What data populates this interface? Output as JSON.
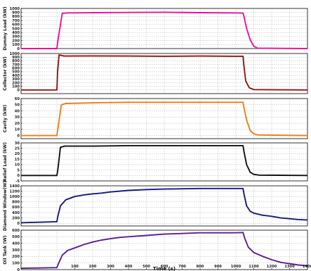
{
  "chart_data": [
    {
      "type": "line",
      "ylabel": "Dummy Load (kW)",
      "xlim": [
        -200,
        1400
      ],
      "ylim": [
        0,
        1000
      ],
      "yticks": [
        0,
        100,
        200,
        300,
        400,
        500,
        600,
        700,
        800,
        900,
        1000
      ],
      "ytick_labels": [
        "0",
        "100",
        "200",
        "300",
        "400",
        "500",
        "600",
        "700",
        "800",
        "900",
        "1000"
      ],
      "grid": true,
      "color": "#e8119a",
      "x": [
        -200,
        0,
        5,
        30,
        60,
        200,
        400,
        600,
        800,
        1000,
        1040,
        1045,
        1060,
        1080,
        1100,
        1120,
        1400
      ],
      "y": [
        0,
        0,
        180,
        880,
        890,
        895,
        900,
        905,
        895,
        890,
        885,
        800,
        500,
        220,
        60,
        10,
        0
      ]
    },
    {
      "type": "line",
      "ylabel": "Collector (kW)",
      "xlim": [
        -200,
        1400
      ],
      "ylim": [
        -100,
        1000
      ],
      "yticks": [
        0,
        100,
        200,
        300,
        400,
        500,
        600,
        700,
        800,
        900,
        1000
      ],
      "ytick_labels": [
        "0",
        "100",
        "200",
        "300",
        "400",
        "500",
        "600",
        "700",
        "800",
        "900",
        "1000"
      ],
      "grid": true,
      "color": "#8e1512",
      "x": [
        -200,
        0,
        4,
        12,
        40,
        200,
        400,
        600,
        800,
        1000,
        1040,
        1044,
        1055,
        1075,
        1100,
        1400
      ],
      "y": [
        0,
        0,
        500,
        960,
        930,
        935,
        930,
        925,
        930,
        925,
        925,
        700,
        250,
        60,
        10,
        0
      ]
    },
    {
      "type": "line",
      "ylabel": "Cavity (kW)",
      "xlim": [
        -200,
        1400
      ],
      "ylim": [
        -5,
        60
      ],
      "yticks": [
        0,
        10,
        20,
        30,
        40,
        50,
        60
      ],
      "ytick_labels": [
        "0",
        "10",
        "20",
        "30",
        "40",
        "50",
        "60"
      ],
      "grid": true,
      "color": "#f07d18",
      "x": [
        -200,
        0,
        5,
        25,
        50,
        200,
        400,
        600,
        800,
        1000,
        1040,
        1045,
        1060,
        1080,
        1100,
        1120,
        1400
      ],
      "y": [
        0,
        0,
        10,
        50,
        52,
        53,
        54,
        54,
        54,
        54,
        54,
        45,
        25,
        8,
        3,
        1,
        0
      ]
    },
    {
      "type": "line",
      "ylabel": "Relief Load (kW)",
      "xlim": [
        -200,
        1400
      ],
      "ylim": [
        -5,
        30
      ],
      "yticks": [
        -5,
        0,
        5,
        10,
        15,
        20,
        25,
        30
      ],
      "ytick_labels": [
        "-5",
        "0",
        "5",
        "10",
        "15",
        "20",
        "25",
        "30"
      ],
      "grid": true,
      "color": "#101010",
      "x": [
        -200,
        0,
        5,
        20,
        45,
        200,
        400,
        600,
        800,
        1000,
        1040,
        1045,
        1060,
        1080,
        1100,
        1130,
        1400
      ],
      "y": [
        0,
        0,
        5,
        26,
        27,
        27,
        27.5,
        27.5,
        27.5,
        27.5,
        27.5,
        22,
        10,
        3,
        1,
        0.3,
        0
      ]
    },
    {
      "type": "line",
      "ylabel": "Diamond Window(W)",
      "xlim": [
        -200,
        1400
      ],
      "ylim": [
        -100,
        1400
      ],
      "yticks": [
        0,
        200,
        400,
        600,
        800,
        1000,
        1200,
        1400
      ],
      "ytick_labels": [
        "0",
        "200",
        "400",
        "600",
        "800",
        "1000",
        "1200",
        "1400"
      ],
      "grid": true,
      "color": "#161a78",
      "x": [
        -200,
        -100,
        0,
        5,
        20,
        50,
        100,
        150,
        200,
        250,
        300,
        400,
        500,
        600,
        700,
        800,
        900,
        1000,
        1040,
        1045,
        1060,
        1080,
        1100,
        1150,
        1200,
        1250,
        1300,
        1350,
        1400
      ],
      "y": [
        20,
        40,
        60,
        250,
        650,
        880,
        1000,
        1060,
        1100,
        1130,
        1170,
        1230,
        1260,
        1280,
        1290,
        1300,
        1300,
        1300,
        1300,
        1100,
        650,
        450,
        380,
        300,
        260,
        200,
        170,
        140,
        120
      ]
    },
    {
      "type": "line",
      "ylabel": "Oil Tank (W)",
      "xlim": [
        -200,
        1400
      ],
      "ylim": [
        0,
        600
      ],
      "yticks": [
        0,
        100,
        200,
        300,
        400,
        500,
        600
      ],
      "ytick_labels": [
        "0",
        "100",
        "200",
        "300",
        "400",
        "500",
        "600"
      ],
      "xticks": [
        100,
        200,
        300,
        400,
        500,
        600,
        700,
        800,
        900,
        1000,
        1100,
        1200,
        1300,
        1400
      ],
      "xtick_labels": [
        "100",
        "200",
        "300",
        "400",
        "500",
        "600",
        "700",
        "800",
        "900",
        "1000",
        "1100",
        "1200",
        "1300",
        "1400"
      ],
      "xlabel": "Time (s)",
      "grid": true,
      "color": "#5a1f8f",
      "x": [
        -200,
        -100,
        0,
        10,
        30,
        60,
        100,
        150,
        200,
        250,
        300,
        350,
        400,
        500,
        600,
        700,
        800,
        900,
        1000,
        1040,
        1050,
        1070,
        1100,
        1150,
        1200,
        1250,
        1300,
        1350,
        1400
      ],
      "y": [
        20,
        25,
        30,
        100,
        220,
        290,
        330,
        380,
        420,
        450,
        470,
        490,
        500,
        520,
        540,
        550,
        560,
        560,
        560,
        565,
        470,
        340,
        260,
        200,
        150,
        110,
        90,
        70,
        60
      ]
    }
  ]
}
